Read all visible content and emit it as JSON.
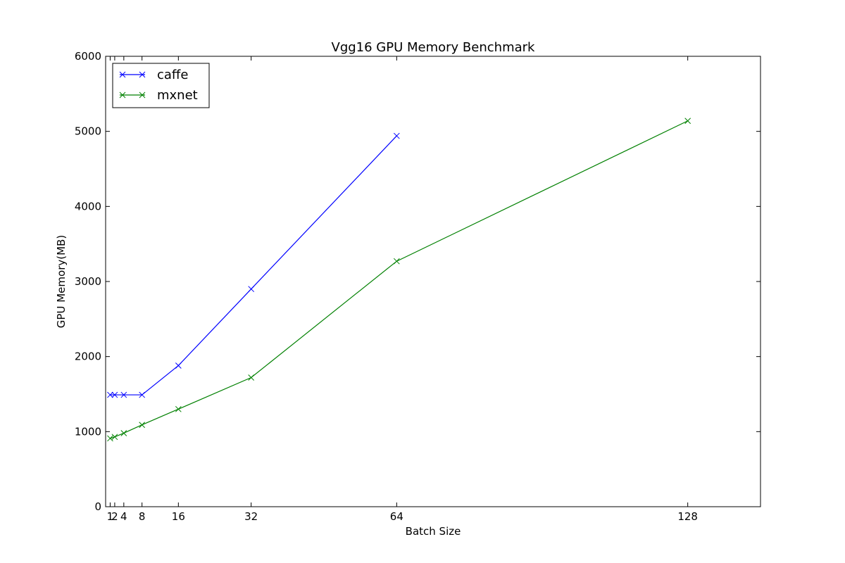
{
  "chart_data": {
    "type": "line",
    "title": "Vgg16 GPU Memory Benchmark",
    "xlabel": "Batch Size",
    "ylabel": "GPU Memory(MB)",
    "xlim": [
      0,
      144
    ],
    "ylim": [
      0,
      6000
    ],
    "xticks": [
      1,
      2,
      4,
      8,
      16,
      32,
      64,
      128
    ],
    "xtick_labels": [
      "1",
      "2",
      "4",
      "8",
      "16",
      "32",
      "64",
      "128"
    ],
    "yticks": [
      0,
      1000,
      2000,
      3000,
      4000,
      5000,
      6000
    ],
    "ytick_labels": [
      "0",
      "1000",
      "2000",
      "3000",
      "4000",
      "5000",
      "6000"
    ],
    "grid": false,
    "legend_position": "top-left",
    "series": [
      {
        "name": "caffe",
        "color": "#0000ff",
        "marker": "x",
        "x": [
          1,
          2,
          4,
          8,
          16,
          32,
          64
        ],
        "y": [
          1490,
          1490,
          1490,
          1490,
          1880,
          2900,
          4940
        ]
      },
      {
        "name": "mxnet",
        "color": "#008000",
        "marker": "x",
        "x": [
          1,
          2,
          4,
          8,
          16,
          32,
          64,
          128
        ],
        "y": [
          910,
          930,
          980,
          1090,
          1300,
          1720,
          3270,
          5140
        ]
      }
    ]
  }
}
